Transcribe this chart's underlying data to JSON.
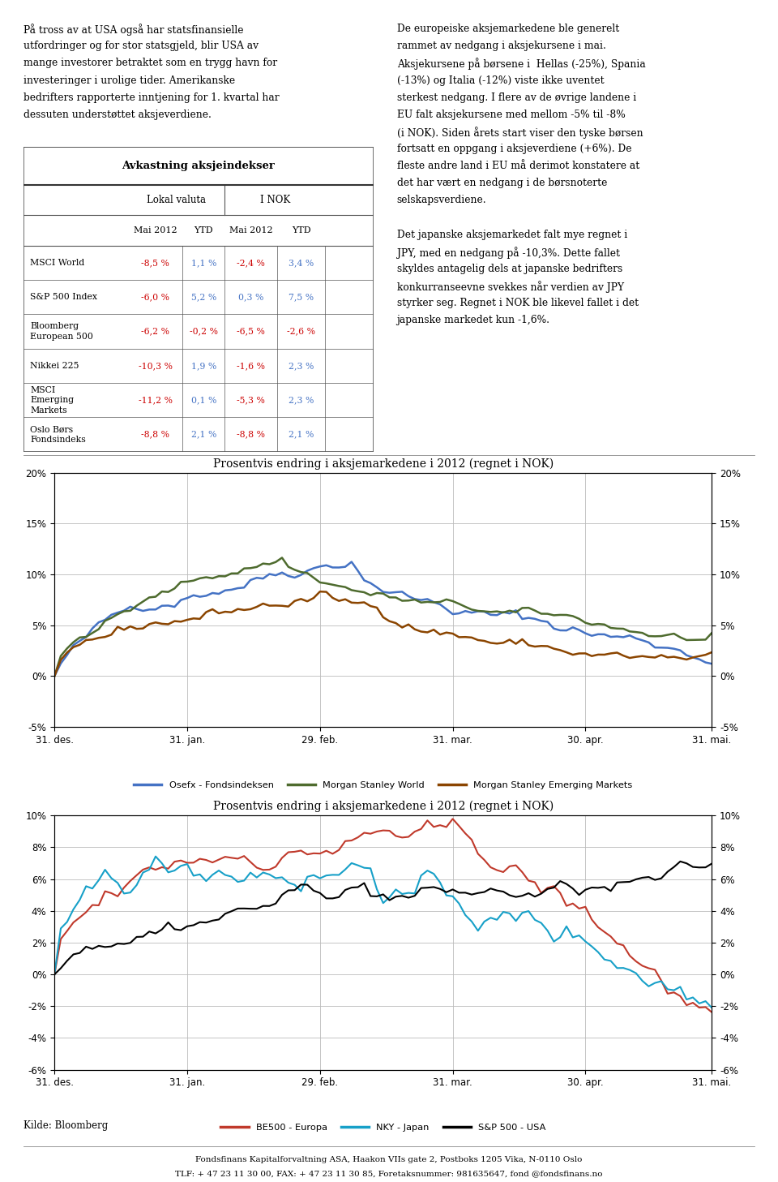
{
  "title_chart1": "Prosentvis endring i aksjemarkedene i 2012 (regnet i NOK)",
  "title_chart2": "Prosentvis endring i aksjemarkedene i 2012 (regnet i NOK)",
  "left_text_lines": [
    "På tross av at USA også har statsfinansielle",
    "utfordringer og for stor statsgjeld, blir USA av",
    "mange investorer betraktet som en trygg havn for",
    "investeringer i urolige tider. Amerikanske",
    "bedrifters rapporterte inntjening for 1. kvartal har",
    "dessuten understøttet aksjeverdiene."
  ],
  "right_text_lines": [
    "De europeiske aksjemarkedene ble generelt",
    "rammet av nedgang i aksjekursene i mai.",
    "Aksjekursene på børsene i  Hellas (-25%), Spania",
    "(-13%) og Italia (-12%) viste ikke uventet",
    "sterkest nedgang. I flere av de øvrige landene i",
    "EU falt aksjekursene med mellom -5% til -8%",
    "(i NOK). Siden årets start viser den tyske børsen",
    "fortsatt en oppgang i aksjeverdiene (+6%). De",
    "fleste andre land i EU må derimot konstatere at",
    "det har vært en nedgang i de børsnoterte",
    "selskapsverdiene.",
    "",
    "Det japanske aksjemarkedet falt mye regnet i",
    "JPY, med en nedgang på -10,3%. Dette fallet",
    "skyldes antagelig dels at japanske bedrifters",
    "konkurranseevne svekkes når verdien av JPY",
    "styrker seg. Regnet i NOK ble likevel fallet i det",
    "japanske markedet kun -1,6%."
  ],
  "table_title": "Avkastning aksjeindekser",
  "table_col1": "Lokal valuta",
  "table_col2": "I NOK",
  "table_subheader": [
    "Mai 2012",
    "YTD",
    "Mai 2012",
    "YTD"
  ],
  "table_rows": [
    {
      "name": "MSCI World",
      "name2": "",
      "name3": "",
      "vals": [
        "-8,5 %",
        "1,1 %",
        "-2,4 %",
        "3,4 %"
      ]
    },
    {
      "name": "S&P 500 Index",
      "name2": "",
      "name3": "",
      "vals": [
        "-6,0 %",
        "5,2 %",
        "0,3 %",
        "7,5 %"
      ]
    },
    {
      "name": "Bloomberg",
      "name2": "European 500",
      "name3": "",
      "vals": [
        "-6,2 %",
        "-0,2 %",
        "-6,5 %",
        "-2,6 %"
      ]
    },
    {
      "name": "Nikkei 225",
      "name2": "",
      "name3": "",
      "vals": [
        "-10,3 %",
        "1,9 %",
        "-1,6 %",
        "2,3 %"
      ]
    },
    {
      "name": "MSCI",
      "name2": "Emerging",
      "name3": "Markets",
      "vals": [
        "-11,2 %",
        "0,1 %",
        "-5,3 %",
        "2,3 %"
      ]
    },
    {
      "name": "Oslo Børs",
      "name2": "Fondsindeks",
      "name3": "",
      "vals": [
        "-8,8 %",
        "2,1 %",
        "-8,8 %",
        "2,1 %"
      ]
    }
  ],
  "negative_color": "#cc0000",
  "positive_color": "#4472c4",
  "x_labels": [
    "31. des.",
    "31. jan.",
    "29. feb.",
    "31. mar.",
    "30. apr.",
    "31. mai."
  ],
  "chart1_colors": [
    "#4472c4",
    "#4e6b2e",
    "#8b4500"
  ],
  "chart1_labels": [
    "Osefx - Fondsindeksen",
    "Morgan Stanley World",
    "Morgan Stanley Emerging Markets"
  ],
  "chart2_colors": [
    "#c0392b",
    "#17a0c8",
    "#000000"
  ],
  "chart2_labels": [
    "BE500 - Europa",
    "NKY - Japan",
    "S&P 500 - USA"
  ],
  "footer": "Kilde: Bloomberg",
  "footer2": "Fondsfinans Kapitalforvaltning ASA, Haakon VIIs gate 2, Postboks 1205 Vika, N-0110 Oslo",
  "footer3": "TLF: + 47 23 11 30 00, FAX: + 47 23 11 30 85, Foretaksnummer: 981635647, fond @fondsfinans.no"
}
